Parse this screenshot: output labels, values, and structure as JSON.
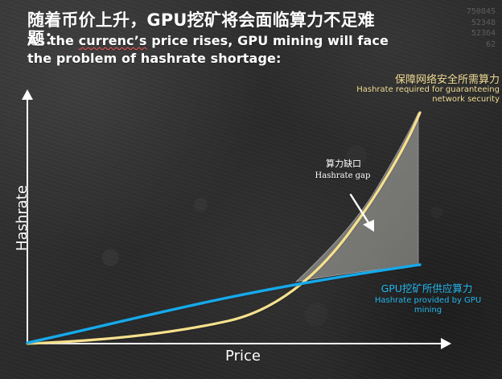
{
  "title": {
    "chinese": "随着币价上升，GPU挖矿将会面临算力不足难题：",
    "english_before": "As the ",
    "english_misspelled": "currenc’s",
    "english_after": " price rises, GPU mining will face the problem of hashrate shortage:"
  },
  "axes": {
    "y_label": "Hashrate",
    "x_label": "Price"
  },
  "labels": {
    "required_cn": "保障网络安全所需算力",
    "required_en": "Hashrate required for guaranteeing network security",
    "gap_cn": "算力缺口",
    "gap_en": "Hashrate gap",
    "gpu_cn": "GPU挖矿所供应算力",
    "gpu_en": "Hashrate provided by GPU mining"
  },
  "decor": {
    "corner_numbers": [
      "750845",
      "52348",
      "52364",
      "62"
    ]
  },
  "colors": {
    "required_curve": "#f7e18d",
    "gpu_line": "#18a9ea",
    "gap_fill": "#8a8a86",
    "axis": "#ffffff",
    "text_primary": "#ffffff"
  },
  "icons": {
    "y_axis_arrow": "arrow-up-icon",
    "x_axis_arrow": "arrow-right-icon",
    "pointer_arrow": "arrow-pointer-icon"
  }
}
